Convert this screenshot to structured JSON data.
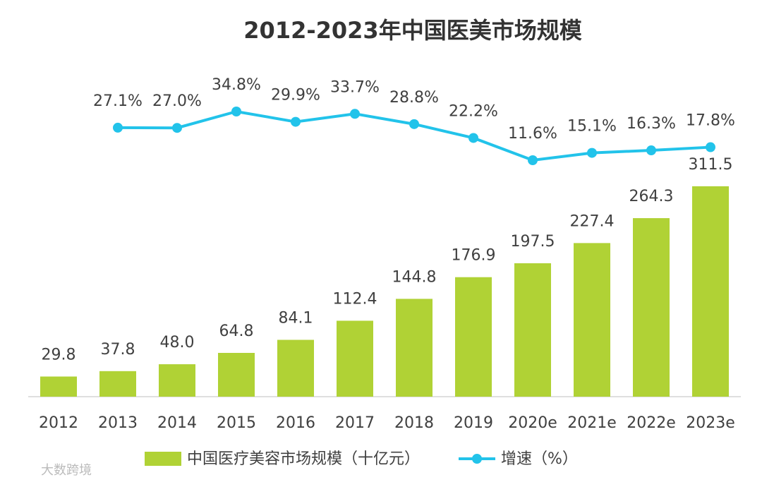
{
  "chart_data": {
    "type": "bar-line",
    "title": "2012-2023年中国医美市场规模",
    "categories": [
      "2012",
      "2013",
      "2014",
      "2015",
      "2016",
      "2017",
      "2018",
      "2019",
      "2020e",
      "2021e",
      "2022e",
      "2023e"
    ],
    "series": [
      {
        "name": "中国医疗美容市场规模（十亿元）",
        "type": "bar",
        "color": "#b0d235",
        "values": [
          29.8,
          37.8,
          48.0,
          64.8,
          84.1,
          112.4,
          144.8,
          176.9,
          197.5,
          227.4,
          264.3,
          311.5
        ],
        "value_labels": [
          "29.8",
          "37.8",
          "48.0",
          "64.8",
          "84.1",
          "112.4",
          "144.8",
          "176.9",
          "197.5",
          "227.4",
          "264.3",
          "311.5"
        ]
      },
      {
        "name": "增速（%）",
        "type": "line",
        "color": "#22c3ea",
        "values": [
          null,
          27.1,
          27.0,
          34.8,
          29.9,
          33.7,
          28.8,
          22.2,
          11.6,
          15.1,
          16.3,
          17.8
        ],
        "value_labels": [
          null,
          "27.1%",
          "27.0%",
          "34.8%",
          "29.9%",
          "33.7%",
          "28.8%",
          "22.2%",
          "11.6%",
          "15.1%",
          "16.3%",
          "17.8%"
        ]
      }
    ],
    "legend": "bottom",
    "watermark": "大数跨境"
  }
}
